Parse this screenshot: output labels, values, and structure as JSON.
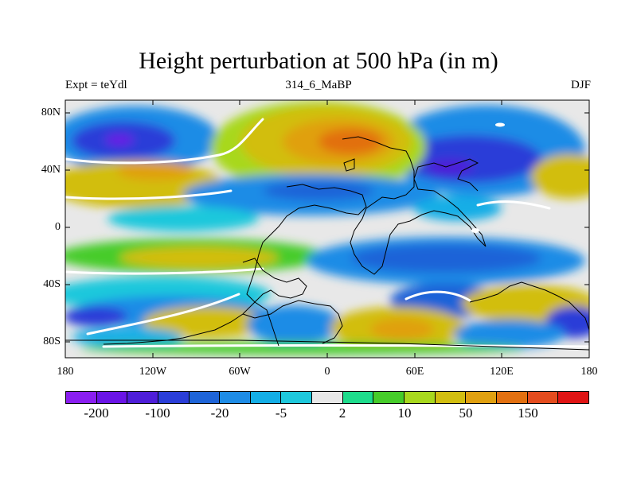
{
  "title": "Height perturbation at 500 hPa (in m)",
  "subtitle_left": "Expt = teYdl",
  "subtitle_center": "314_6_MaBP",
  "subtitle_right": "DJF",
  "y_ticks": [
    "80N",
    "40N",
    "0",
    "40S",
    "80S"
  ],
  "x_ticks": [
    "180",
    "120W",
    "60W",
    "0",
    "60E",
    "120E",
    "180"
  ],
  "colorbar": {
    "colors": [
      "#8a1ef0",
      "#6a14e6",
      "#4e1ed8",
      "#2a3ed8",
      "#1e64d8",
      "#1e8ce6",
      "#14aee6",
      "#1ec8dc",
      "#e8e8e8",
      "#1edc8c",
      "#46cc2a",
      "#a8d81e",
      "#d2be10",
      "#e0a010",
      "#e27010",
      "#e44c1e",
      "#e01414"
    ],
    "labels": [
      "-200",
      "-100",
      "-20",
      "-5",
      "2",
      "10",
      "50",
      "150"
    ]
  }
}
